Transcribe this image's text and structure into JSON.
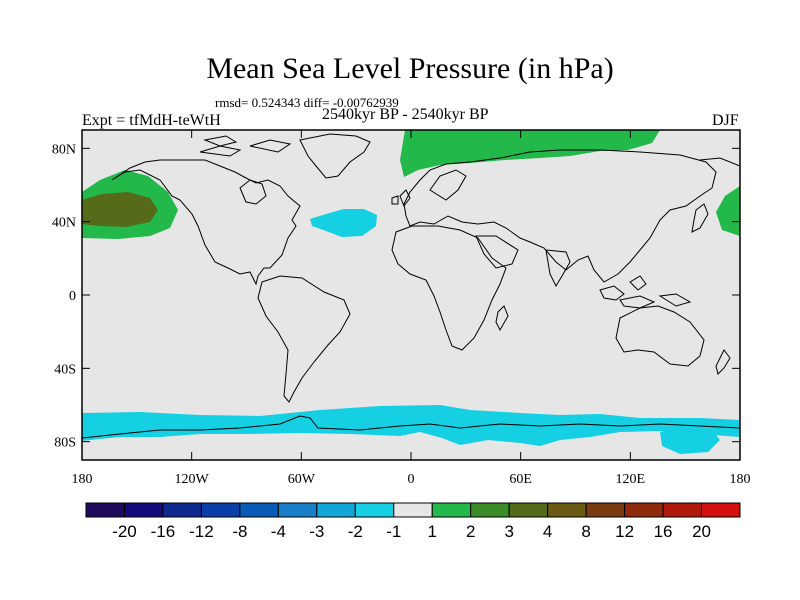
{
  "header": {
    "title": "Mean Sea Level Pressure (in hPa)",
    "stats": "rmsd= 0.524343 diff= -0.00762939",
    "period": "2540kyr BP - 2540kyr BP",
    "experiment": "Expt = tfMdH-teWtH",
    "season": "DJF"
  },
  "map": {
    "lon_range": [
      -180,
      180
    ],
    "lat_range": [
      -90,
      90
    ],
    "background_color": "#e6e6e6",
    "x_ticks": [
      {
        "lon": -180,
        "label": "180"
      },
      {
        "lon": -120,
        "label": "120W"
      },
      {
        "lon": -60,
        "label": "60W"
      },
      {
        "lon": 0,
        "label": "0"
      },
      {
        "lon": 60,
        "label": "60E"
      },
      {
        "lon": 120,
        "label": "120E"
      },
      {
        "lon": 180,
        "label": "180"
      }
    ],
    "y_ticks": [
      {
        "lat": 80,
        "label": "80N"
      },
      {
        "lat": 40,
        "label": "40N"
      },
      {
        "lat": 0,
        "label": "0"
      },
      {
        "lat": -40,
        "label": "40S"
      },
      {
        "lat": -80,
        "label": "80S"
      }
    ]
  },
  "colorbar": {
    "colors": [
      "#1f0a5c",
      "#150a7a",
      "#0f2a8f",
      "#0a3ea8",
      "#0a5ab8",
      "#1a7fc9",
      "#12a6d8",
      "#14d0e2",
      "#e6e6e6",
      "#22b84a",
      "#3c8c2a",
      "#556b1a",
      "#6b5a14",
      "#7a3a0f",
      "#8f2a0a",
      "#b01a0a",
      "#d41010"
    ],
    "labels": [
      "-20",
      "-16",
      "-12",
      "-8",
      "-4",
      "-3",
      "-2",
      "-1",
      "1",
      "2",
      "3",
      "4",
      "8",
      "12",
      "16",
      "20"
    ]
  }
}
